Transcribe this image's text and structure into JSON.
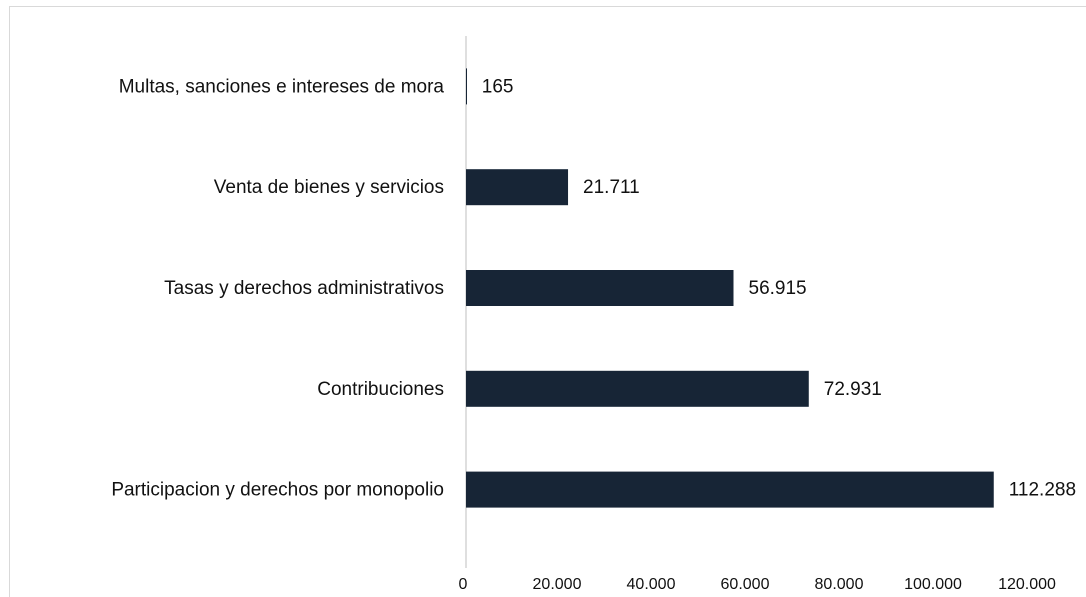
{
  "chart_data": {
    "type": "bar",
    "orientation": "horizontal",
    "categories": [
      "Multas, sanciones e intereses de mora",
      "Venta de bienes y servicios",
      "Tasas y derechos administrativos",
      "Contribuciones",
      "Participacion y derechos por monopolio"
    ],
    "values": [
      165,
      21711,
      56915,
      72931,
      112288
    ],
    "value_labels": [
      "165",
      "21.711",
      "56.915",
      "72.931",
      "112.288"
    ],
    "color": "#172536",
    "xlim": [
      0,
      120000
    ],
    "xticks": [
      0,
      {
        "value": 20000,
        "label": "20.000"
      },
      {
        "value": 40000,
        "label": "40.000"
      },
      {
        "value": 60000,
        "label": "60.000"
      },
      {
        "value": 80000,
        "label": "80.000"
      },
      {
        "value": 100000,
        "label": "100.000"
      },
      {
        "value": 120000,
        "label": "120.000"
      }
    ],
    "grid": false
  }
}
